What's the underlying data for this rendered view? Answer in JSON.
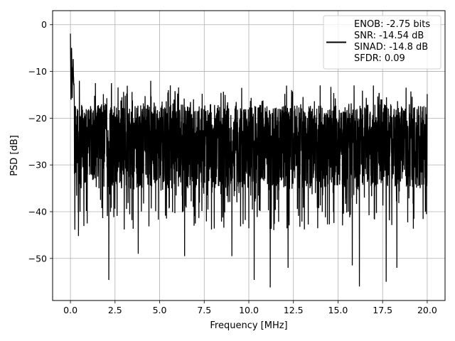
{
  "chart_data": {
    "type": "line",
    "title": "",
    "xlabel": "Frequency [MHz]",
    "ylabel": "PSD [dB]",
    "xlim": [
      -1.0,
      21.0
    ],
    "ylim": [
      -59.0,
      3.0
    ],
    "xticks": [
      0.0,
      2.5,
      5.0,
      7.5,
      10.0,
      12.5,
      15.0,
      17.5,
      20.0
    ],
    "xtick_labels": [
      "0.0",
      "2.5",
      "5.0",
      "7.5",
      "10.0",
      "12.5",
      "15.0",
      "17.5",
      "20.0"
    ],
    "yticks": [
      0,
      -10,
      -20,
      -30,
      -40,
      -50
    ],
    "ytick_labels": [
      "0",
      "−10",
      "−20",
      "−30",
      "−40",
      "−50"
    ],
    "grid": true,
    "legend_position": "top-right",
    "legend": {
      "line_color": "#000000",
      "lines": [
        "ENOB: -2.75 bits",
        "SNR: -14.54 dB",
        "SINAD: -14.8 dB",
        "SFDR: 0.09"
      ]
    },
    "series": [
      {
        "color": "#000000",
        "x_range": [
          0.0,
          20.0
        ],
        "peak_points": [
          [
            0.0,
            0.0
          ],
          [
            0.03,
            -18.0
          ],
          [
            0.06,
            -5.0
          ],
          [
            0.1,
            -14.0
          ],
          [
            0.15,
            -9.0
          ],
          [
            0.22,
            -15.0
          ]
        ],
        "noise_median": -27,
        "noise_max": -12,
        "noise_min": -56,
        "notable_minima": [
          [
            0.45,
            -45.2
          ],
          [
            2.15,
            -54.6
          ],
          [
            3.8,
            -49.0
          ],
          [
            6.4,
            -49.5
          ],
          [
            9.05,
            -49.5
          ],
          [
            10.3,
            -54.6
          ],
          [
            11.2,
            -56.2
          ],
          [
            12.2,
            -52.0
          ],
          [
            15.8,
            -51.5
          ],
          [
            16.2,
            -56.0
          ],
          [
            17.7,
            -55.0
          ],
          [
            18.3,
            -52.0
          ],
          [
            19.9,
            -40.0
          ]
        ],
        "notable_maxima": [
          [
            0.5,
            -12.0
          ],
          [
            1.4,
            -12.5
          ],
          [
            2.3,
            -12.5
          ],
          [
            4.5,
            -12.0
          ],
          [
            5.6,
            -13.0
          ],
          [
            9.6,
            -13.5
          ],
          [
            12.4,
            -14.0
          ],
          [
            14.0,
            -13.0
          ]
        ]
      }
    ]
  }
}
